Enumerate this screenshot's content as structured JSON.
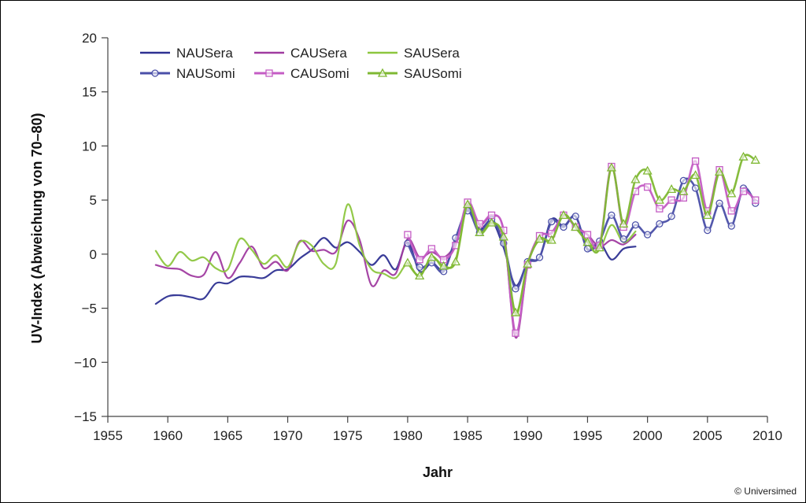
{
  "chart_data": {
    "type": "line",
    "xlabel": "Jahr",
    "ylabel": "UV-Index (Abweichung von 70–80)",
    "xlim": [
      1955,
      2010
    ],
    "ylim": [
      -15,
      20
    ],
    "xticks": [
      1955,
      1960,
      1965,
      1970,
      1975,
      1980,
      1985,
      1990,
      1995,
      2000,
      2005,
      2010
    ],
    "yticks": [
      -15,
      -10,
      -5,
      0,
      5,
      10,
      15,
      20
    ],
    "ytick_labels": [
      "−15",
      "−10",
      "−5",
      "0",
      "5",
      "10",
      "15",
      "20"
    ],
    "legend_position": "top-left",
    "grid": false,
    "series": [
      {
        "name": "NAUSera",
        "color": "#2e3192",
        "marker": "none",
        "x": [
          1959,
          1960,
          1961,
          1962,
          1963,
          1964,
          1965,
          1966,
          1967,
          1968,
          1969,
          1970,
          1971,
          1972,
          1973,
          1974,
          1975,
          1976,
          1977,
          1978,
          1979,
          1980,
          1981,
          1982,
          1983,
          1984,
          1985,
          1986,
          1987,
          1988,
          1989,
          1990,
          1991,
          1992,
          1993,
          1994,
          1995,
          1996,
          1997,
          1998,
          1999
        ],
        "y": [
          -4.6,
          -3.9,
          -3.8,
          -4.0,
          -4.1,
          -2.7,
          -2.7,
          -2.1,
          -2.1,
          -2.2,
          -1.5,
          -1.4,
          -0.4,
          0.4,
          1.5,
          0.6,
          1.1,
          0.2,
          -1.0,
          -0.1,
          -1.4,
          1.1,
          -1.6,
          -0.8,
          -1.4,
          1.2,
          4.1,
          2.3,
          3.1,
          0.6,
          -2.9,
          -0.8,
          -0.3,
          3.2,
          2.6,
          3.5,
          0.4,
          1.1,
          -0.5,
          0.5,
          0.7
        ]
      },
      {
        "name": "NAUSomi",
        "color": "#4a4fa8",
        "marker": "circle",
        "x": [
          1980,
          1981,
          1982,
          1983,
          1984,
          1985,
          1986,
          1987,
          1988,
          1989,
          1990,
          1991,
          1992,
          1993,
          1994,
          1995,
          1996,
          1997,
          1998,
          1999,
          2000,
          2001,
          2002,
          2003,
          2004,
          2005,
          2006,
          2007,
          2008,
          2009
        ],
        "y": [
          1.0,
          -1.2,
          -0.8,
          -1.6,
          1.5,
          4.0,
          2.0,
          3.2,
          1.0,
          -3.2,
          -0.7,
          -0.3,
          3.0,
          2.5,
          3.5,
          0.5,
          1.2,
          3.6,
          1.4,
          2.7,
          1.8,
          2.8,
          3.5,
          6.8,
          6.1,
          2.2,
          4.7,
          2.6,
          6.1,
          4.7
        ]
      },
      {
        "name": "CAUSera",
        "color": "#a03ba0",
        "marker": "none",
        "x": [
          1959,
          1960,
          1961,
          1962,
          1963,
          1964,
          1965,
          1966,
          1967,
          1968,
          1969,
          1970,
          1971,
          1972,
          1973,
          1974,
          1975,
          1976,
          1977,
          1978,
          1979,
          1980,
          1981,
          1982,
          1983,
          1984,
          1985,
          1986,
          1987,
          1988,
          1989,
          1990,
          1991,
          1992,
          1993,
          1994,
          1995,
          1996,
          1997,
          1998,
          1999
        ],
        "y": [
          -1.0,
          -1.3,
          -1.4,
          -2.0,
          -1.9,
          0.2,
          -2.2,
          -0.8,
          0.7,
          -1.3,
          -0.7,
          -1.5,
          1.2,
          0.3,
          0.4,
          0.2,
          3.1,
          1.3,
          -2.9,
          -1.5,
          -1.8,
          1.4,
          -0.3,
          0.2,
          -0.3,
          1.0,
          4.4,
          2.7,
          3.5,
          2.2,
          -7.7,
          -1.1,
          1.6,
          2.0,
          3.5,
          2.6,
          1.8,
          0.7,
          1.3,
          0.9,
          1.8
        ]
      },
      {
        "name": "CAUSomi",
        "color": "#c45cc4",
        "marker": "square",
        "x": [
          1980,
          1981,
          1982,
          1983,
          1984,
          1985,
          1986,
          1987,
          1988,
          1989,
          1990,
          1991,
          1992,
          1993,
          1994,
          1995,
          1996,
          1997,
          1998,
          1999,
          2000,
          2001,
          2002,
          2003,
          2004,
          2005,
          2006,
          2007,
          2008,
          2009
        ],
        "y": [
          1.8,
          -0.5,
          0.5,
          -0.5,
          0.8,
          4.8,
          2.8,
          3.6,
          2.2,
          -7.3,
          -1.0,
          1.7,
          1.9,
          3.6,
          2.5,
          1.8,
          0.8,
          8.1,
          2.5,
          5.8,
          6.2,
          4.2,
          5.0,
          5.2,
          8.6,
          4.0,
          7.8,
          4.0,
          5.8,
          5.0
        ]
      },
      {
        "name": "SAUSera",
        "color": "#8dc63f",
        "marker": "none",
        "x": [
          1959,
          1960,
          1961,
          1962,
          1963,
          1964,
          1965,
          1966,
          1967,
          1968,
          1969,
          1970,
          1971,
          1972,
          1973,
          1974,
          1975,
          1976,
          1977,
          1978,
          1979,
          1980,
          1981,
          1982,
          1983,
          1984,
          1985,
          1986,
          1987,
          1988,
          1989,
          1990,
          1991,
          1992,
          1993,
          1994,
          1995,
          1996,
          1997,
          1998,
          1999
        ],
        "y": [
          0.3,
          -1.1,
          0.2,
          -0.6,
          -0.3,
          -1.3,
          -1.4,
          1.4,
          0.4,
          -0.9,
          -0.1,
          -1.2,
          1.1,
          0.8,
          -0.9,
          -0.9,
          4.6,
          0.8,
          -1.4,
          -1.8,
          -2.2,
          -0.9,
          -2.1,
          -0.2,
          -1.3,
          -0.5,
          4.5,
          1.9,
          2.8,
          1.5,
          -5.6,
          -0.8,
          1.3,
          1.2,
          3.7,
          2.4,
          1.2,
          0.5,
          2.7,
          1.1,
          2.1
        ]
      },
      {
        "name": "SAUSomi",
        "color": "#7fb833",
        "marker": "triangle",
        "x": [
          1980,
          1981,
          1982,
          1983,
          1984,
          1985,
          1986,
          1987,
          1988,
          1989,
          1990,
          1991,
          1992,
          1993,
          1994,
          1995,
          1996,
          1997,
          1998,
          1999,
          2000,
          2001,
          2002,
          2003,
          2004,
          2005,
          2006,
          2007,
          2008,
          2009
        ],
        "y": [
          -0.8,
          -2.0,
          -0.3,
          -1.1,
          -0.7,
          4.6,
          2.0,
          2.9,
          1.6,
          -5.4,
          -0.9,
          1.4,
          1.3,
          3.6,
          2.5,
          1.1,
          0.6,
          8.0,
          2.8,
          6.9,
          7.7,
          5.0,
          6.0,
          5.8,
          7.3,
          3.6,
          7.6,
          5.6,
          9.0,
          8.7
        ]
      }
    ]
  },
  "credit": "© Universimed"
}
